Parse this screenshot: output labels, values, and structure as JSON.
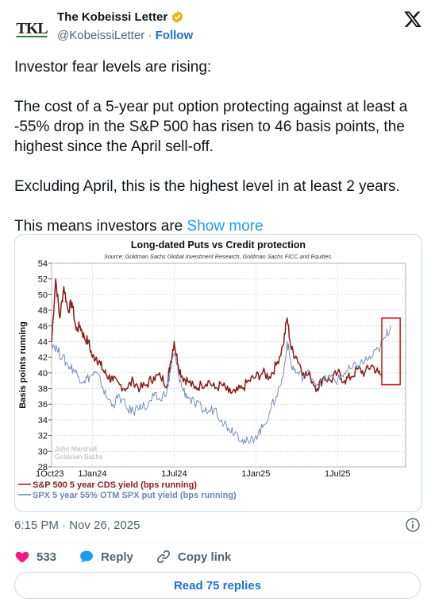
{
  "author": {
    "avatar_text": "TKL",
    "name": "The Kobeissi Letter",
    "handle": "@KobeissiLetter",
    "separator": "·",
    "follow_label": "Follow"
  },
  "tweet": {
    "paragraphs": [
      "Investor fear levels are rising:",
      "The cost of a 5-year put option protecting against at least a -55% drop in the S&P 500 has risen to 46 basis points, the highest since the April sell-off.",
      "Excluding April, this is the highest level in at least 2 years."
    ],
    "last_line": "This means investors are",
    "show_more_label": "Show more"
  },
  "chart_data": {
    "type": "line",
    "title": "Long-dated Puts vs Credit protection",
    "subtitle": "Source: Goldman Sachs Global Investment Research, Goldman Sachs FICC and Equities.",
    "ylabel": "Basis points running",
    "ylim": [
      28,
      54
    ],
    "yticks": [
      28,
      30,
      32,
      34,
      36,
      38,
      40,
      42,
      44,
      46,
      48,
      50,
      52,
      54
    ],
    "x_tick_labels": [
      "1Oct23",
      "1Jan24",
      "1Jul24",
      "1Jan25",
      "1Jul25"
    ],
    "x_tick_months": [
      0,
      3,
      9,
      15,
      21
    ],
    "x_range_months": [
      0,
      26
    ],
    "watermark": [
      "John Marshall",
      "Goldman Sachs"
    ],
    "grid": true,
    "legend_position": "bottom",
    "series": [
      {
        "name": "S&P 500 5 year CDS yield (bps running)",
        "color": "#8b1a1a",
        "points": [
          [
            0,
            44
          ],
          [
            0.3,
            52
          ],
          [
            0.6,
            47
          ],
          [
            0.9,
            51
          ],
          [
            1.2,
            48
          ],
          [
            1.5,
            49
          ],
          [
            1.8,
            45.5
          ],
          [
            2.1,
            46
          ],
          [
            2.4,
            44.5
          ],
          [
            2.7,
            44
          ],
          [
            3.0,
            42
          ],
          [
            3.3,
            42
          ],
          [
            3.6,
            41
          ],
          [
            3.9,
            40
          ],
          [
            4.2,
            39.5
          ],
          [
            4.5,
            39
          ],
          [
            5.0,
            38.5
          ],
          [
            5.5,
            38
          ],
          [
            6.0,
            39
          ],
          [
            6.5,
            38
          ],
          [
            7.0,
            38.5
          ],
          [
            7.5,
            39.5
          ],
          [
            8.0,
            39.5
          ],
          [
            8.5,
            38.5
          ],
          [
            8.7,
            41
          ],
          [
            9.0,
            44
          ],
          [
            9.3,
            41
          ],
          [
            9.6,
            39.5
          ],
          [
            10.0,
            39
          ],
          [
            10.5,
            38
          ],
          [
            11.0,
            38.5
          ],
          [
            11.5,
            39
          ],
          [
            12.0,
            38
          ],
          [
            12.5,
            38.5
          ],
          [
            13.0,
            37.5
          ],
          [
            13.5,
            37.5
          ],
          [
            14.0,
            38
          ],
          [
            14.5,
            39
          ],
          [
            15.0,
            39.5
          ],
          [
            15.5,
            40
          ],
          [
            16.0,
            39.5
          ],
          [
            16.5,
            41
          ],
          [
            17.0,
            43.5
          ],
          [
            17.3,
            47
          ],
          [
            17.6,
            43
          ],
          [
            18.0,
            42
          ],
          [
            18.5,
            40
          ],
          [
            19.0,
            39.5
          ],
          [
            19.5,
            38
          ],
          [
            20.0,
            39.5
          ],
          [
            20.5,
            39
          ],
          [
            21.0,
            40
          ],
          [
            21.5,
            39
          ],
          [
            22.0,
            39.5
          ],
          [
            22.5,
            40.5
          ],
          [
            23.0,
            40
          ],
          [
            23.5,
            41
          ],
          [
            24.0,
            40
          ],
          [
            24.3,
            39.5
          ]
        ]
      },
      {
        "name": "SPX 5 year 55% OTM SPX put yield (bps running)",
        "color": "#6a86b0",
        "points": [
          [
            0,
            44
          ],
          [
            0.4,
            43
          ],
          [
            0.8,
            42
          ],
          [
            1.2,
            41
          ],
          [
            1.6,
            40.5
          ],
          [
            2.0,
            39.5
          ],
          [
            2.4,
            39
          ],
          [
            2.8,
            39.5
          ],
          [
            3.2,
            40
          ],
          [
            3.6,
            39
          ],
          [
            4.0,
            37
          ],
          [
            4.5,
            36
          ],
          [
            5.0,
            37
          ],
          [
            5.5,
            35.5
          ],
          [
            6.0,
            35
          ],
          [
            6.5,
            36
          ],
          [
            7.0,
            35.5
          ],
          [
            7.5,
            37
          ],
          [
            8.0,
            36.5
          ],
          [
            8.5,
            38
          ],
          [
            8.7,
            40
          ],
          [
            9.0,
            42.5
          ],
          [
            9.3,
            40
          ],
          [
            9.6,
            38
          ],
          [
            10.0,
            37
          ],
          [
            10.5,
            36
          ],
          [
            11.0,
            35.5
          ],
          [
            11.5,
            35
          ],
          [
            12.0,
            35.5
          ],
          [
            12.5,
            34
          ],
          [
            13.0,
            33
          ],
          [
            13.5,
            32.5
          ],
          [
            14.0,
            31.5
          ],
          [
            14.5,
            31
          ],
          [
            15.0,
            32
          ],
          [
            15.5,
            33
          ],
          [
            16.0,
            35
          ],
          [
            16.5,
            37
          ],
          [
            17.0,
            39.5
          ],
          [
            17.3,
            44
          ],
          [
            17.6,
            41
          ],
          [
            18.0,
            40
          ],
          [
            18.5,
            39.5
          ],
          [
            19.0,
            40
          ],
          [
            19.5,
            38.5
          ],
          [
            20.0,
            39
          ],
          [
            20.5,
            39.5
          ],
          [
            21.0,
            39
          ],
          [
            21.5,
            40
          ],
          [
            22.0,
            40.5
          ],
          [
            22.5,
            41
          ],
          [
            23.0,
            41.5
          ],
          [
            23.5,
            42
          ],
          [
            24.0,
            43
          ],
          [
            24.5,
            44.5
          ],
          [
            24.9,
            46
          ]
        ]
      }
    ]
  },
  "timestamp": "6:15 PM · Nov 26, 2025",
  "actions": {
    "likes": "533",
    "reply_label": "Reply",
    "copy_link_label": "Copy link"
  },
  "read_replies_label": "Read 75 replies",
  "colors": {
    "accent": "#1d9bf0",
    "like": "#f91880",
    "verified": "#e2b719"
  }
}
